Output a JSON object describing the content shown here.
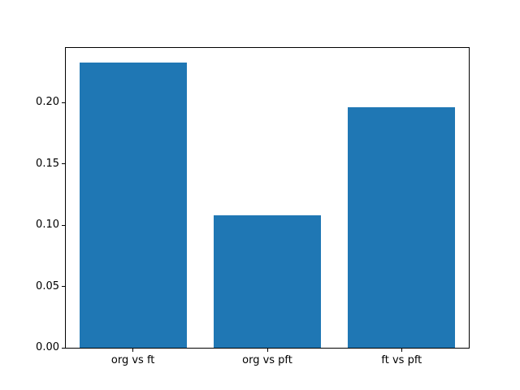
{
  "chart_data": {
    "type": "bar",
    "title": "",
    "xlabel": "",
    "ylabel": "",
    "categories": [
      "org vs ft",
      "org vs pft",
      "ft vs pft"
    ],
    "values": [
      0.233,
      0.108,
      0.196
    ],
    "ylim": [
      0,
      0.2447
    ],
    "yticks": [
      0.0,
      0.05,
      0.1,
      0.15,
      0.2
    ],
    "ytick_labels": [
      "0.00",
      "0.05",
      "0.10",
      "0.15",
      "0.20"
    ],
    "bar_color": "#1f77b4",
    "bar_width_fraction": 0.8,
    "grid": false,
    "legend": null,
    "spine_color": "#000000",
    "background_color": "#ffffff"
  }
}
